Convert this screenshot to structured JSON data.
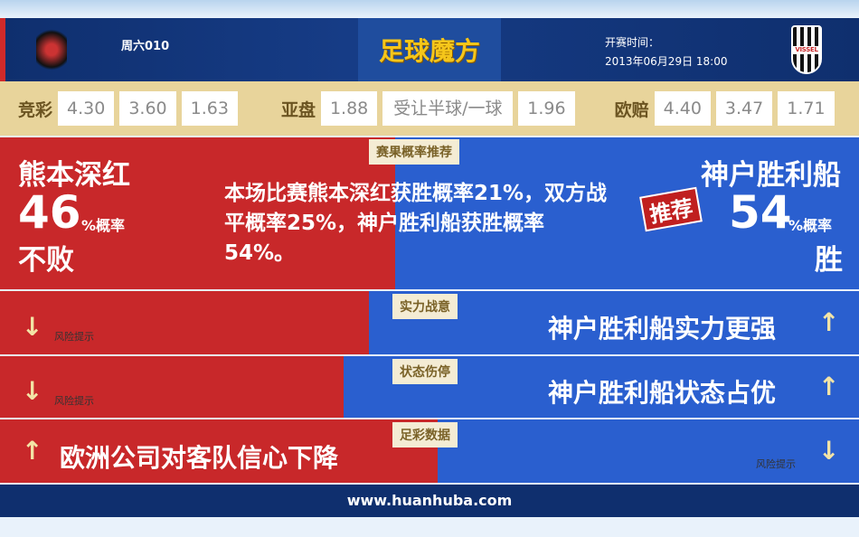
{
  "header": {
    "match_id": "周六010",
    "logo_text": "足球魔方",
    "kickoff_label": "开赛时间：",
    "kickoff_time": "2013年06月29日 18:00",
    "away_logo_text": "VISSEL"
  },
  "odds": {
    "jingcai_label": "竞彩",
    "jingcai": [
      "4.30",
      "3.60",
      "1.63"
    ],
    "yapan_label": "亚盘",
    "yapan": [
      "1.88",
      "受让半球/一球",
      "1.96"
    ],
    "oupei_label": "欧赔",
    "oupei": [
      "4.40",
      "3.47",
      "1.71"
    ]
  },
  "prediction": {
    "tag": "赛果概率推荐",
    "home_team": "熊本深红",
    "home_pct": "46",
    "pct_suffix": "%概率",
    "home_result": "不败",
    "summary": "本场比赛熊本深红获胜概率21%，双方战平概率25%，神户胜利船获胜概率54%。",
    "away_team": "神户胜利船",
    "recommend_badge": "推荐",
    "away_pct": "54",
    "away_result": "胜"
  },
  "rows": [
    {
      "tag": "实力战意",
      "left_risk": "风险提示",
      "right_text": "神户胜利船实力更强"
    },
    {
      "tag": "状态伤停",
      "left_risk": "风险提示",
      "right_text": "神户胜利船状态占优"
    },
    {
      "tag": "足彩数据",
      "left_text": "欧洲公司对客队信心下降",
      "right_risk": "风险提示"
    }
  ],
  "footer": {
    "url": "www.huanhuba.com"
  },
  "colors": {
    "home": "#c8282a",
    "away": "#2a5fcf",
    "accent": "#f5c61a"
  }
}
